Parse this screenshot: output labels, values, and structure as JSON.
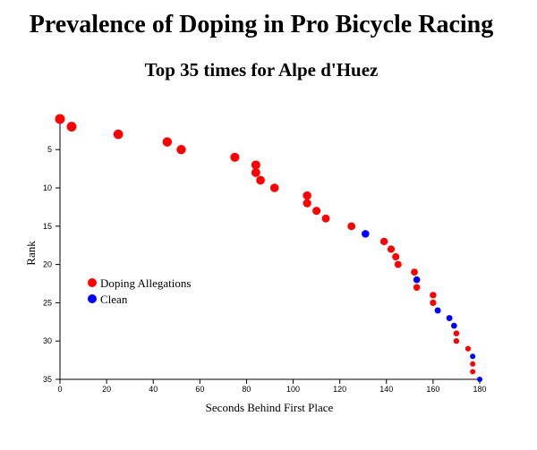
{
  "chart_data": {
    "type": "scatter",
    "title": "Prevalence of Doping in Pro Bicycle Racing",
    "subtitle": "Top 35 times for Alpe d'Huez",
    "xlabel": "Seconds Behind First Place",
    "ylabel": "Rank",
    "xlim": [
      0,
      180
    ],
    "ylim": [
      1,
      35
    ],
    "y_reversed": true,
    "x_ticks": [
      0,
      20,
      40,
      60,
      80,
      100,
      120,
      140,
      160,
      180
    ],
    "y_ticks": [
      5,
      10,
      15,
      20,
      25,
      30,
      35
    ],
    "legend_position": "bottom-left",
    "series": [
      {
        "name": "Doping Allegations",
        "color": "#ff0000",
        "points": [
          {
            "x": 0,
            "y": 1
          },
          {
            "x": 5,
            "y": 2
          },
          {
            "x": 25,
            "y": 3
          },
          {
            "x": 46,
            "y": 4
          },
          {
            "x": 52,
            "y": 5
          },
          {
            "x": 75,
            "y": 6
          },
          {
            "x": 84,
            "y": 7
          },
          {
            "x": 84,
            "y": 8
          },
          {
            "x": 86,
            "y": 9
          },
          {
            "x": 92,
            "y": 10
          },
          {
            "x": 106,
            "y": 11
          },
          {
            "x": 106,
            "y": 12
          },
          {
            "x": 110,
            "y": 13
          },
          {
            "x": 114,
            "y": 14
          },
          {
            "x": 125,
            "y": 15
          },
          {
            "x": 139,
            "y": 17
          },
          {
            "x": 142,
            "y": 18
          },
          {
            "x": 144,
            "y": 19
          },
          {
            "x": 145,
            "y": 20
          },
          {
            "x": 152,
            "y": 21
          },
          {
            "x": 153,
            "y": 23
          },
          {
            "x": 160,
            "y": 24
          },
          {
            "x": 160,
            "y": 25
          },
          {
            "x": 170,
            "y": 29
          },
          {
            "x": 170,
            "y": 30
          },
          {
            "x": 175,
            "y": 31
          },
          {
            "x": 177,
            "y": 33
          },
          {
            "x": 177,
            "y": 34
          }
        ]
      },
      {
        "name": "Clean",
        "color": "#0000ff",
        "points": [
          {
            "x": 131,
            "y": 16
          },
          {
            "x": 153,
            "y": 22
          },
          {
            "x": 162,
            "y": 26
          },
          {
            "x": 167,
            "y": 27
          },
          {
            "x": 169,
            "y": 28
          },
          {
            "x": 177,
            "y": 32
          },
          {
            "x": 180,
            "y": 35
          }
        ]
      }
    ]
  }
}
